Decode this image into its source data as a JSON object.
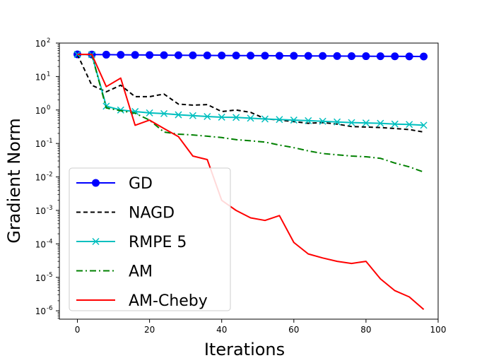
{
  "chart_data": {
    "type": "line",
    "xlabel": "Iterations",
    "ylabel": "Gradient Norm",
    "xlim": [
      -5,
      100
    ],
    "yscale": "log",
    "ylim_exponent": [
      -6.25,
      2.0
    ],
    "xticks": [
      0,
      20,
      40,
      60,
      80,
      100
    ],
    "yticks": [
      {
        "base": "10",
        "exp": "2",
        "value": 100
      },
      {
        "base": "10",
        "exp": "1",
        "value": 10
      },
      {
        "base": "10",
        "exp": "0",
        "value": 1
      },
      {
        "base": "10",
        "exp": "-1",
        "value": 0.1
      },
      {
        "base": "10",
        "exp": "-2",
        "value": 0.01
      },
      {
        "base": "10",
        "exp": "-3",
        "value": 0.001
      },
      {
        "base": "10",
        "exp": "-4",
        "value": 0.0001
      },
      {
        "base": "10",
        "exp": "-5",
        "value": 1e-05
      },
      {
        "base": "10",
        "exp": "-6",
        "value": 1e-06
      }
    ],
    "grid": false,
    "legend_position": "lower-left",
    "series": [
      {
        "name": "GD",
        "color": "#0000ff",
        "dash": "",
        "marker": "circle",
        "x": [
          0,
          4,
          8,
          12,
          16,
          20,
          24,
          28,
          32,
          36,
          40,
          44,
          48,
          52,
          56,
          60,
          64,
          68,
          72,
          76,
          80,
          84,
          88,
          92,
          96
        ],
        "y": [
          46,
          45.5,
          45,
          44.6,
          44.2,
          43.9,
          43.6,
          43.3,
          43,
          42.8,
          42.6,
          42.4,
          42.2,
          42,
          41.8,
          41.6,
          41.4,
          41.2,
          41,
          40.8,
          40.6,
          40.4,
          40.2,
          40,
          39.8
        ]
      },
      {
        "name": "NAGD",
        "color": "#000000",
        "dash": "6,4",
        "marker": "none",
        "x": [
          0,
          4,
          8,
          12,
          16,
          20,
          24,
          28,
          32,
          36,
          40,
          44,
          48,
          52,
          56,
          60,
          64,
          68,
          72,
          76,
          80,
          84,
          88,
          92,
          96
        ],
        "y": [
          46,
          5.5,
          3.5,
          5.5,
          2.5,
          2.5,
          3,
          1.5,
          1.4,
          1.45,
          0.9,
          1,
          0.85,
          0.55,
          0.5,
          0.45,
          0.4,
          0.42,
          0.38,
          0.32,
          0.31,
          0.3,
          0.28,
          0.26,
          0.22
        ]
      },
      {
        "name": "RMPE 5",
        "color": "#00bfbf",
        "dash": "",
        "marker": "x",
        "x": [
          0,
          4,
          8,
          12,
          16,
          20,
          24,
          28,
          32,
          36,
          40,
          44,
          48,
          52,
          56,
          60,
          64,
          68,
          72,
          76,
          80,
          84,
          88,
          92,
          96
        ],
        "y": [
          46,
          45,
          1.3,
          1,
          0.9,
          0.82,
          0.78,
          0.72,
          0.68,
          0.64,
          0.61,
          0.6,
          0.57,
          0.54,
          0.52,
          0.5,
          0.48,
          0.46,
          0.44,
          0.42,
          0.41,
          0.4,
          0.38,
          0.37,
          0.35
        ]
      },
      {
        "name": "AM",
        "color": "#008000",
        "dash": "9,4,2,4",
        "marker": "none",
        "x": [
          0,
          4,
          8,
          12,
          16,
          20,
          24,
          28,
          32,
          36,
          40,
          44,
          48,
          52,
          56,
          60,
          64,
          68,
          72,
          76,
          80,
          84,
          88,
          92,
          96
        ],
        "y": [
          46,
          45,
          1.15,
          0.95,
          0.8,
          0.5,
          0.22,
          0.19,
          0.18,
          0.165,
          0.15,
          0.13,
          0.12,
          0.11,
          0.09,
          0.075,
          0.06,
          0.05,
          0.046,
          0.042,
          0.04,
          0.036,
          0.026,
          0.02,
          0.014
        ]
      },
      {
        "name": "AM-Cheby",
        "color": "#ff0000",
        "dash": "",
        "marker": "none",
        "x": [
          0,
          4,
          8,
          12,
          16,
          20,
          24,
          28,
          32,
          36,
          40,
          44,
          48,
          52,
          56,
          60,
          64,
          68,
          72,
          76,
          80,
          84,
          88,
          92,
          96
        ],
        "y": [
          46,
          46,
          5,
          9,
          0.35,
          0.5,
          0.28,
          0.16,
          0.042,
          0.033,
          0.002,
          0.001,
          0.0006,
          0.0005,
          0.0007,
          0.00011,
          5e-05,
          3.8e-05,
          3e-05,
          2.6e-05,
          3e-05,
          9e-06,
          4e-06,
          2.6e-06,
          1.1e-06
        ]
      }
    ]
  }
}
